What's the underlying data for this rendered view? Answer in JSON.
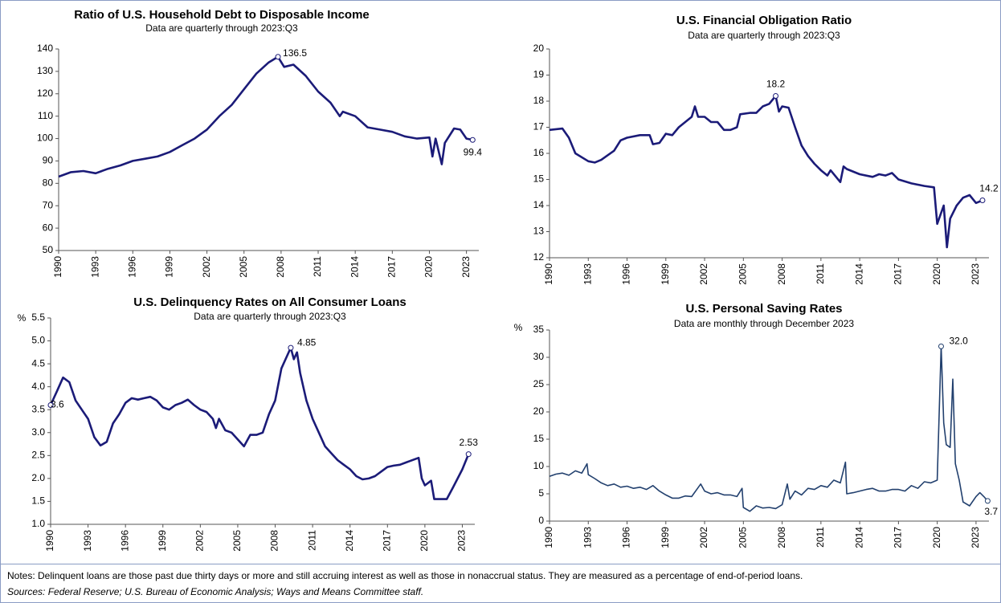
{
  "chart_data": [
    {
      "type": "line",
      "title": "Ratio of U.S. Household Debt to Disposable Income",
      "subtitle": "Data are quarterly through 2023:Q3",
      "color": "#1b1b78",
      "x": [
        1990,
        1991,
        1992,
        1993,
        1994,
        1995,
        1996,
        1997,
        1998,
        1999,
        2000,
        2001,
        2002,
        2003,
        2004,
        2005,
        2006,
        2007,
        2007.75,
        2008.25,
        2009,
        2010,
        2011,
        2012,
        2012.75,
        2013,
        2014,
        2015,
        2016,
        2017,
        2018,
        2019,
        2020,
        2020.25,
        2020.5,
        2021,
        2021.25,
        2022,
        2022.5,
        2023,
        2023.5
      ],
      "values": [
        83,
        85,
        85.5,
        84.5,
        86.5,
        88,
        90,
        91,
        92,
        94,
        97,
        100,
        104,
        110,
        115,
        122,
        129,
        134,
        136.5,
        132,
        133,
        128,
        121,
        116,
        110,
        112,
        110,
        105,
        104,
        103,
        101,
        100,
        100.5,
        92,
        100,
        88.5,
        98,
        104.5,
        104,
        100,
        99.4
      ],
      "xlim": [
        1990,
        2024
      ],
      "xticks": [
        1990,
        1993,
        1996,
        1999,
        2002,
        2005,
        2008,
        2011,
        2014,
        2017,
        2020,
        2023
      ],
      "ylim": [
        50,
        140
      ],
      "yticks": [
        50,
        60,
        70,
        80,
        90,
        100,
        110,
        120,
        130,
        140
      ],
      "annotations": [
        {
          "x": 2007.75,
          "y": 136.5
        },
        {
          "x": 2023.5,
          "y": 99.4
        }
      ]
    },
    {
      "type": "line",
      "title": "U.S. Financial Obligation Ratio",
      "subtitle": "Data are quarterly through 2023:Q3",
      "color": "#1b1b78",
      "x": [
        1990,
        1991,
        1991.5,
        1992,
        1993,
        1993.5,
        1994,
        1995,
        1995.5,
        1996,
        1997,
        1997.75,
        1998,
        1998.5,
        1999,
        1999.5,
        2000,
        2001,
        2001.25,
        2001.5,
        2002,
        2002.5,
        2003,
        2003.5,
        2004,
        2004.5,
        2004.75,
        2005.5,
        2006,
        2006.5,
        2007,
        2007.5,
        2007.75,
        2008,
        2008.5,
        2009,
        2009.5,
        2010,
        2010.5,
        2011,
        2011.5,
        2011.75,
        2012.5,
        2012.75,
        2013,
        2014,
        2015,
        2015.5,
        2016,
        2016.5,
        2017,
        2018,
        2019,
        2019.75,
        2020,
        2020.5,
        2020.75,
        2021,
        2021.5,
        2022,
        2022.5,
        2023,
        2023.5
      ],
      "values": [
        16.9,
        16.95,
        16.6,
        16.0,
        15.7,
        15.65,
        15.75,
        16.1,
        16.5,
        16.6,
        16.7,
        16.7,
        16.35,
        16.4,
        16.75,
        16.7,
        17.0,
        17.4,
        17.8,
        17.4,
        17.4,
        17.2,
        17.2,
        16.9,
        16.9,
        17.0,
        17.5,
        17.55,
        17.55,
        17.8,
        17.9,
        18.2,
        17.6,
        17.8,
        17.75,
        17.0,
        16.3,
        15.9,
        15.6,
        15.35,
        15.15,
        15.35,
        14.9,
        15.5,
        15.4,
        15.2,
        15.1,
        15.2,
        15.15,
        15.25,
        15.0,
        14.85,
        14.75,
        14.7,
        13.3,
        14.0,
        12.4,
        13.5,
        14.0,
        14.3,
        14.4,
        14.1,
        14.2
      ],
      "xlim": [
        1990,
        2024
      ],
      "xticks": [
        1990,
        1993,
        1996,
        1999,
        2002,
        2005,
        2008,
        2011,
        2014,
        2017,
        2020,
        2023
      ],
      "ylim": [
        12,
        20
      ],
      "yticks": [
        12,
        13,
        14,
        15,
        16,
        17,
        18,
        19,
        20
      ],
      "annotations": [
        {
          "x": 2007.5,
          "y": 18.2
        },
        {
          "x": 2023.5,
          "y": 14.2
        }
      ]
    },
    {
      "type": "line",
      "title": "U.S. Delinquency Rates on All Consumer Loans",
      "subtitle": "Data are quarterly through 2023:Q3",
      "y_label": "%",
      "color": "#1b1b78",
      "x": [
        1990,
        1990.5,
        1991,
        1991.5,
        1992,
        1992.5,
        1993,
        1993.5,
        1994,
        1994.5,
        1995,
        1995.5,
        1996,
        1996.5,
        1997,
        1997.5,
        1998,
        1998.5,
        1999,
        1999.5,
        2000,
        2000.5,
        2001,
        2001.5,
        2002,
        2002.5,
        2003,
        2003.25,
        2003.5,
        2004,
        2004.5,
        2005,
        2005.5,
        2006,
        2006.5,
        2007,
        2007.5,
        2008,
        2008.5,
        2009.25,
        2009.5,
        2009.75,
        2010,
        2010.5,
        2011,
        2011.5,
        2012,
        2012.5,
        2013,
        2013.5,
        2014,
        2014.5,
        2015,
        2015.5,
        2016,
        2016.5,
        2017,
        2017.5,
        2018,
        2018.5,
        2019.5,
        2019.75,
        2020,
        2020.5,
        2020.75,
        2021,
        2021.75,
        2022.25,
        2023,
        2023.5
      ],
      "values": [
        3.6,
        3.9,
        4.2,
        4.1,
        3.7,
        3.5,
        3.3,
        2.9,
        2.72,
        2.8,
        3.2,
        3.4,
        3.65,
        3.75,
        3.72,
        3.75,
        3.78,
        3.7,
        3.55,
        3.5,
        3.6,
        3.65,
        3.72,
        3.6,
        3.5,
        3.45,
        3.3,
        3.1,
        3.3,
        3.05,
        3.0,
        2.85,
        2.7,
        2.95,
        2.95,
        3.0,
        3.4,
        3.7,
        4.4,
        4.85,
        4.6,
        4.75,
        4.3,
        3.7,
        3.3,
        3.0,
        2.7,
        2.55,
        2.4,
        2.3,
        2.2,
        2.05,
        1.98,
        2.0,
        2.05,
        2.15,
        2.25,
        2.28,
        2.3,
        2.35,
        2.45,
        2.0,
        1.85,
        1.95,
        1.55,
        1.55,
        1.55,
        1.8,
        2.2,
        2.53
      ],
      "xlim": [
        1990,
        2024
      ],
      "xticks": [
        1990,
        1993,
        1996,
        1999,
        2002,
        2005,
        2008,
        2011,
        2014,
        2017,
        2020,
        2023
      ],
      "ylim": [
        1.0,
        5.5
      ],
      "yticks": [
        {
          "value": 1,
          "label": "1.0"
        },
        1.5,
        {
          "value": 2,
          "label": "2.0"
        },
        2.5,
        {
          "value": 3,
          "label": "3.0"
        },
        3.5,
        {
          "value": 4,
          "label": "4.0"
        },
        4.5,
        {
          "value": 5,
          "label": "5.0"
        },
        5.5
      ],
      "annotations": [
        {
          "x": 1990,
          "y": 3.6
        },
        {
          "x": 2009.25,
          "y": 4.85
        },
        {
          "x": 2023.5,
          "y": 2.53
        }
      ]
    },
    {
      "type": "line",
      "title": "U.S. Personal Saving Rates",
      "subtitle": "Data are monthly through December 2023",
      "y_label": "%",
      "color": "#22406e",
      "x": [
        1990,
        1990.5,
        1991,
        1991.5,
        1992,
        1992.5,
        1992.9,
        1993,
        1993.5,
        1994,
        1994.5,
        1995,
        1995.5,
        1996,
        1996.5,
        1997,
        1997.5,
        1998,
        1998.5,
        1999,
        1999.5,
        2000,
        2000.5,
        2001,
        2001.7,
        2002,
        2002.5,
        2003,
        2003.5,
        2004,
        2004.5,
        2004.9,
        2005,
        2005.5,
        2006,
        2006.5,
        2007,
        2007.5,
        2008,
        2008.4,
        2008.6,
        2009,
        2009.5,
        2010,
        2010.5,
        2011,
        2011.5,
        2012,
        2012.5,
        2012.9,
        2013,
        2013.5,
        2014,
        2014.5,
        2015,
        2015.5,
        2016,
        2016.5,
        2017,
        2017.5,
        2018,
        2018.5,
        2019,
        2019.5,
        2020,
        2020.3,
        2020.5,
        2020.7,
        2021,
        2021.2,
        2021.4,
        2021.7,
        2022,
        2022.5,
        2023,
        2023.3,
        2023.6,
        2023.9
      ],
      "values": [
        8.2,
        8.6,
        8.8,
        8.4,
        9.2,
        8.8,
        10.5,
        8.5,
        7.8,
        7.0,
        6.5,
        6.8,
        6.2,
        6.4,
        6.0,
        6.2,
        5.8,
        6.5,
        5.5,
        4.8,
        4.2,
        4.2,
        4.6,
        4.5,
        6.8,
        5.5,
        5.0,
        5.2,
        4.8,
        4.8,
        4.5,
        6.0,
        2.5,
        1.8,
        2.8,
        2.4,
        2.5,
        2.3,
        3.0,
        6.8,
        4.0,
        5.5,
        4.8,
        6.0,
        5.8,
        6.5,
        6.2,
        7.5,
        7.0,
        10.8,
        5.0,
        5.2,
        5.5,
        5.8,
        6.0,
        5.5,
        5.5,
        5.8,
        5.8,
        5.5,
        6.5,
        6.0,
        7.2,
        7.0,
        7.5,
        32.0,
        18,
        14,
        13.5,
        26,
        10.5,
        7.5,
        3.5,
        2.8,
        4.5,
        5.2,
        4.5,
        3.7
      ],
      "xlim": [
        1990,
        2024
      ],
      "xticks": [
        1990,
        1993,
        1996,
        1999,
        2002,
        2005,
        2008,
        2011,
        2014,
        2017,
        2020,
        2023
      ],
      "ylim": [
        0,
        35
      ],
      "yticks": [
        0,
        5,
        10,
        15,
        20,
        25,
        30,
        35
      ],
      "annotations": [
        {
          "x": 2020.3,
          "y": 32.0,
          "label": "32.0"
        },
        {
          "x": 2023.9,
          "y": 3.7
        }
      ]
    }
  ],
  "notes": "Notes: Delinquent loans are those past due thirty days or more and still accruing interest as well as those in nonaccrual status. They are measured as a percentage of end-of-period loans.",
  "sources": "Sources: Federal Reserve; U.S. Bureau of Economic Analysis; Ways and Means Committee staff."
}
